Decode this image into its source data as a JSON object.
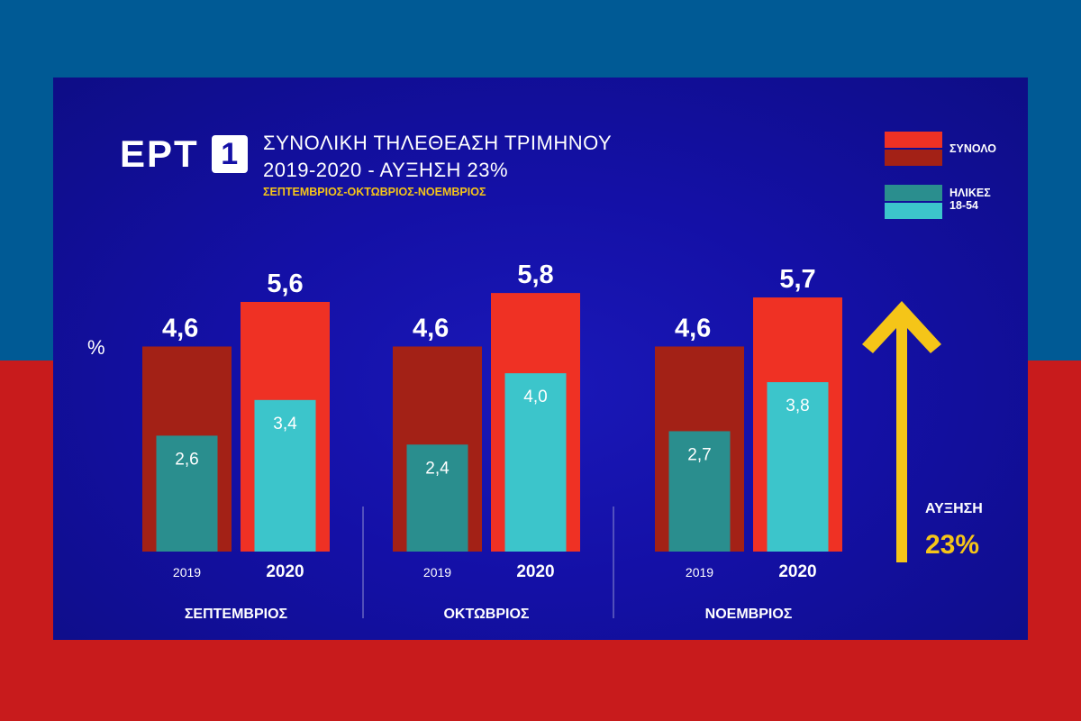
{
  "colors": {
    "bg_top": "#005a95",
    "bg_bottom": "#c81b1c",
    "total_2019": "#a32116",
    "total_2020": "#ef3124",
    "age_2019": "#2a8e8e",
    "age_2020": "#3cc5cb",
    "accent_yellow": "#f5c518",
    "text": "#ffffff",
    "logo_box_text": "#1410a6"
  },
  "logo": {
    "text": "ΕΡΤ",
    "box": "1"
  },
  "title": {
    "line1": "ΣΥΝΟΛΙΚΗ ΤΗΛΕΘΕΑΣΗ ΤΡΙΜΗΝΟΥ",
    "line2": "2019-2020 - ΑΥΞΗΣΗ 23%",
    "subtitle": "ΣΕΠΤΕΜΒΡΙΟΣ-ΟΚΤΩΒΡΙΟΣ-ΝΟΕΜΒΡΙΟΣ"
  },
  "legend": {
    "total": "ΣΥΝΟΛΟ",
    "age_line1": "ΗΛΙΚΕΣ",
    "age_line2": "18-54"
  },
  "unit": "%",
  "increase": {
    "label": "ΑΥΞΗΣΗ",
    "value": "23%"
  },
  "chart_data": {
    "type": "bar",
    "title": "ΣΥΝΟΛΙΚΗ ΤΗΛΕΘΕΑΣΗ ΤΡΙΜΗΝΟΥ 2019-2020 - ΑΥΞΗΣΗ 23%",
    "ylabel": "%",
    "ylim": [
      0,
      6.5
    ],
    "groups": [
      {
        "month": "ΣΕΠΤΕΜΒΡΙΟΣ",
        "years": [
          {
            "year": "2019",
            "total": 4.6,
            "total_label": "4,6",
            "age": 2.6,
            "age_label": "2,6"
          },
          {
            "year": "2020",
            "total": 5.6,
            "total_label": "5,6",
            "age": 3.4,
            "age_label": "3,4"
          }
        ]
      },
      {
        "month": "ΟΚΤΩΒΡΙΟΣ",
        "years": [
          {
            "year": "2019",
            "total": 4.6,
            "total_label": "4,6",
            "age": 2.4,
            "age_label": "2,4"
          },
          {
            "year": "2020",
            "total": 5.8,
            "total_label": "5,8",
            "age": 4.0,
            "age_label": "4,0"
          }
        ]
      },
      {
        "month": "ΝΟΕΜΒΡΙΟΣ",
        "years": [
          {
            "year": "2019",
            "total": 4.6,
            "total_label": "4,6",
            "age": 2.7,
            "age_label": "2,7"
          },
          {
            "year": "2020",
            "total": 5.7,
            "total_label": "5,7",
            "age": 3.8,
            "age_label": "3,8"
          }
        ]
      }
    ],
    "series": [
      {
        "name": "ΣΥΝΟΛΟ"
      },
      {
        "name": "ΗΛΙΚΕΣ 18-54"
      }
    ]
  }
}
